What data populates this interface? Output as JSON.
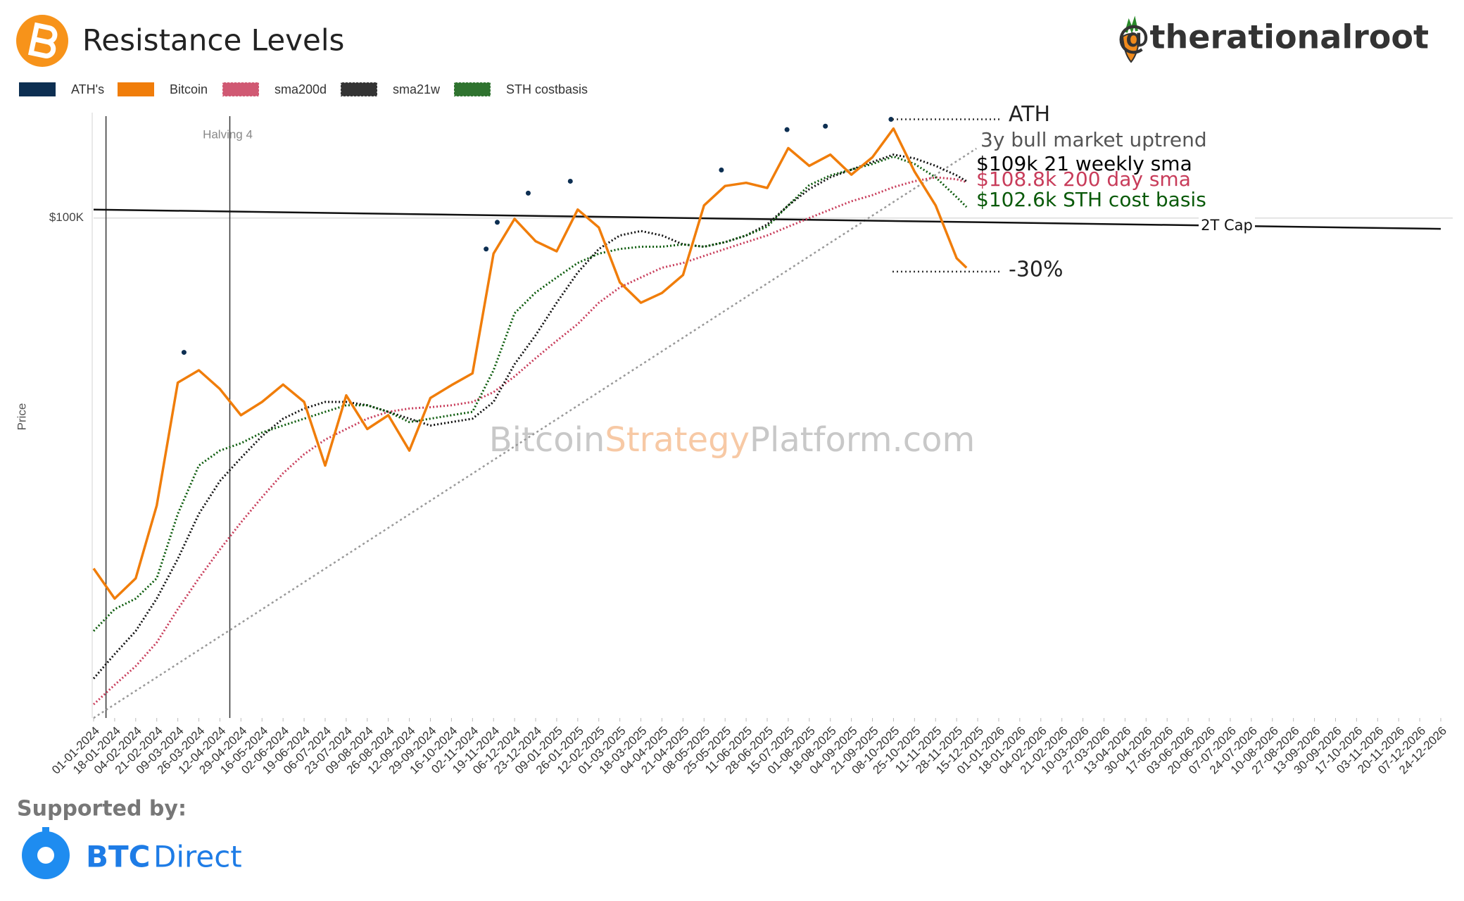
{
  "header": {
    "handle": "@therationalroot"
  },
  "footer": {
    "supported_by": "Supported by:",
    "brand_bold": "BTC",
    "brand_rest": "Direct"
  },
  "chart_data": {
    "type": "line",
    "title": "Resistance Levels",
    "ylabel": "Price",
    "log_scale": true,
    "ylim": [
      31000,
      128000
    ],
    "yticks": [
      {
        "value": 100000,
        "label": "$100K"
      }
    ],
    "grid": true,
    "xlim": [
      "01-01-2024",
      "24-12-2026"
    ],
    "xticks": [
      "01-01-2024",
      "18-01-2024",
      "04-02-2024",
      "21-02-2024",
      "09-03-2024",
      "26-03-2024",
      "12-04-2024",
      "29-04-2024",
      "16-05-2024",
      "02-06-2024",
      "19-06-2024",
      "06-07-2024",
      "23-07-2024",
      "09-08-2024",
      "26-08-2024",
      "12-09-2024",
      "29-09-2024",
      "16-10-2024",
      "02-11-2024",
      "19-11-2024",
      "06-12-2024",
      "23-12-2024",
      "09-01-2025",
      "26-01-2025",
      "12-02-2025",
      "01-03-2025",
      "18-03-2025",
      "04-04-2025",
      "21-04-2025",
      "08-05-2025",
      "25-05-2025",
      "11-06-2025",
      "28-06-2025",
      "15-07-2025",
      "01-08-2025",
      "18-08-2025",
      "04-09-2025",
      "21-09-2025",
      "08-10-2025",
      "25-10-2025",
      "11-11-2025",
      "28-11-2025",
      "15-12-2025",
      "01-01-2026",
      "18-01-2026",
      "04-02-2026",
      "21-02-2026",
      "10-03-2026",
      "27-03-2026",
      "13-04-2026",
      "30-04-2026",
      "17-05-2026",
      "03-06-2026",
      "20-06-2026",
      "07-07-2026",
      "24-07-2026",
      "10-08-2026",
      "27-08-2026",
      "13-09-2026",
      "30-09-2026",
      "17-10-2026",
      "03-11-2026",
      "20-11-2026",
      "07-12-2026",
      "24-12-2026"
    ],
    "x": [
      "01-01-2024",
      "18-01-2024",
      "04-02-2024",
      "21-02-2024",
      "09-03-2024",
      "26-03-2024",
      "12-04-2024",
      "29-04-2024",
      "16-05-2024",
      "02-06-2024",
      "19-06-2024",
      "06-07-2024",
      "23-07-2024",
      "09-08-2024",
      "26-08-2024",
      "12-09-2024",
      "29-09-2024",
      "16-10-2024",
      "02-11-2024",
      "19-11-2024",
      "06-12-2024",
      "23-12-2024",
      "09-01-2025",
      "26-01-2025",
      "12-02-2025",
      "01-03-2025",
      "18-03-2025",
      "04-04-2025",
      "21-04-2025",
      "08-05-2025",
      "25-05-2025",
      "11-06-2025",
      "28-06-2025",
      "15-07-2025",
      "01-08-2025",
      "18-08-2025",
      "04-09-2025",
      "21-09-2025",
      "08-10-2025",
      "25-10-2025",
      "11-11-2025",
      "28-11-2025",
      "06-12-2025"
    ],
    "series": [
      {
        "name": "Bitcoin",
        "color": "#f07d0a",
        "style": "solid",
        "values": [
          44000,
          41000,
          43000,
          51000,
          68000,
          70000,
          67000,
          63000,
          65000,
          67700,
          65000,
          56000,
          66000,
          61000,
          63000,
          58000,
          65600,
          67600,
          69500,
          92000,
          99800,
          94700,
          92500,
          102000,
          97800,
          86000,
          82000,
          83900,
          87500,
          103000,
          107800,
          108600,
          107300,
          117800,
          113000,
          116000,
          110700,
          115300,
          123300,
          111500,
          103000,
          91000,
          89000
        ]
      },
      {
        "name": "sma200d",
        "color": "#c83c5a",
        "style": "dotted",
        "values": [
          32000,
          33500,
          35000,
          37000,
          40000,
          43000,
          46000,
          49000,
          52000,
          55000,
          57500,
          59500,
          61000,
          62500,
          63500,
          64000,
          64200,
          64500,
          65000,
          66500,
          69000,
          72000,
          75000,
          78000,
          82000,
          85000,
          87000,
          89000,
          90000,
          91500,
          93000,
          94500,
          96000,
          98000,
          100000,
          102000,
          104000,
          105500,
          107500,
          109000,
          110000,
          109500,
          108800
        ]
      },
      {
        "name": "sma21w",
        "color": "#111111",
        "style": "dotted",
        "values": [
          34000,
          36000,
          38000,
          41000,
          45000,
          50000,
          54000,
          57000,
          60000,
          62500,
          64000,
          65000,
          65000,
          64500,
          63500,
          62500,
          61500,
          62000,
          62500,
          65000,
          71000,
          76000,
          82000,
          88000,
          93000,
          96000,
          97000,
          96000,
          94000,
          93500,
          94500,
          96000,
          98500,
          103000,
          107000,
          110000,
          112000,
          114000,
          116000,
          115000,
          113000,
          110500,
          109000
        ]
      },
      {
        "name": "STH costbasis",
        "color": "#0a5a0a",
        "style": "dotted",
        "values": [
          38000,
          40000,
          41000,
          43000,
          50000,
          56000,
          58000,
          59000,
          60500,
          61500,
          62500,
          63500,
          64500,
          64500,
          63500,
          62000,
          62500,
          63000,
          63500,
          70000,
          80000,
          84000,
          87000,
          90000,
          92000,
          93000,
          93500,
          93500,
          94000,
          93500,
          94500,
          96000,
          98000,
          103000,
          108000,
          110500,
          112000,
          113500,
          115500,
          113500,
          110000,
          105000,
          102600
        ]
      }
    ],
    "ath": {
      "name": "ATH's",
      "color": "#0d2f52",
      "x": [
        "14-03-2024",
        "13-11-2024",
        "22-11-2024",
        "17-12-2024",
        "20-01-2025",
        "22-05-2025",
        "14-07-2025",
        "14-08-2025",
        "06-10-2025"
      ],
      "values": [
        73000,
        93000,
        99000,
        106000,
        109000,
        111900,
        123000,
        124000,
        126000
      ]
    },
    "cap_line": {
      "label": "2T Cap",
      "x": [
        "01-01-2024",
        "24-12-2026"
      ],
      "values": [
        102000,
        97500
      ]
    },
    "uptrend": {
      "label": "3y bull market uptrend",
      "x": [
        "01-01-2024",
        "14-12-2025"
      ],
      "values": [
        31000,
        117700
      ]
    },
    "events": [
      {
        "x": "11-01-2024"
      },
      {
        "x": "20-04-2024",
        "label": "Halving 4"
      }
    ],
    "ath_level": {
      "label": "ATH",
      "value": 126000
    },
    "drawdown_level": {
      "label": "-30%",
      "value": 88200
    },
    "annotations": {
      "sma21w": "$109k 21 weekly sma",
      "sma200d": "$108.8k  200 day sma",
      "sth": "$102.6k STH cost basis"
    },
    "watermark": [
      "Bitcoin",
      "Strategy",
      "Platform.com"
    ]
  }
}
